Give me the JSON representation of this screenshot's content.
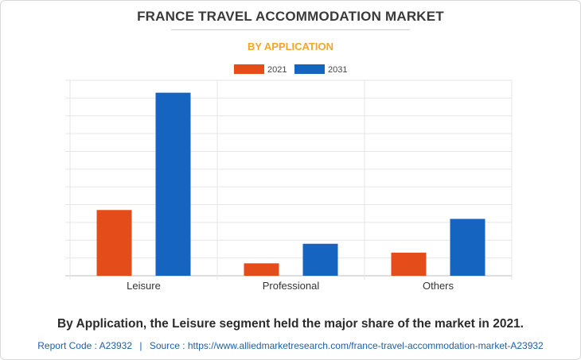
{
  "header": {
    "title": "FRANCE TRAVEL ACCOMMODATION MARKET",
    "subtitle": "BY APPLICATION"
  },
  "chart_data": {
    "type": "bar",
    "categories": [
      "Leisure",
      "Professional",
      "Others"
    ],
    "series": [
      {
        "name": "2021",
        "color": "#e44d1a",
        "values": [
          37,
          7,
          13
        ]
      },
      {
        "name": "2031",
        "color": "#1565c0",
        "values": [
          103,
          18,
          32
        ]
      }
    ],
    "ylim": [
      0,
      110
    ],
    "grid": true,
    "legend_position": "top-center",
    "y_tick_labels_shown": false
  },
  "caption": "By Application, the Leisure segment held the major share of the market in 2021.",
  "footer": {
    "report_code": "Report Code : A23932",
    "separator": "|",
    "source": "Source : https://www.alliedmarketresearch.com/france-travel-accommodation-market-A23932"
  }
}
